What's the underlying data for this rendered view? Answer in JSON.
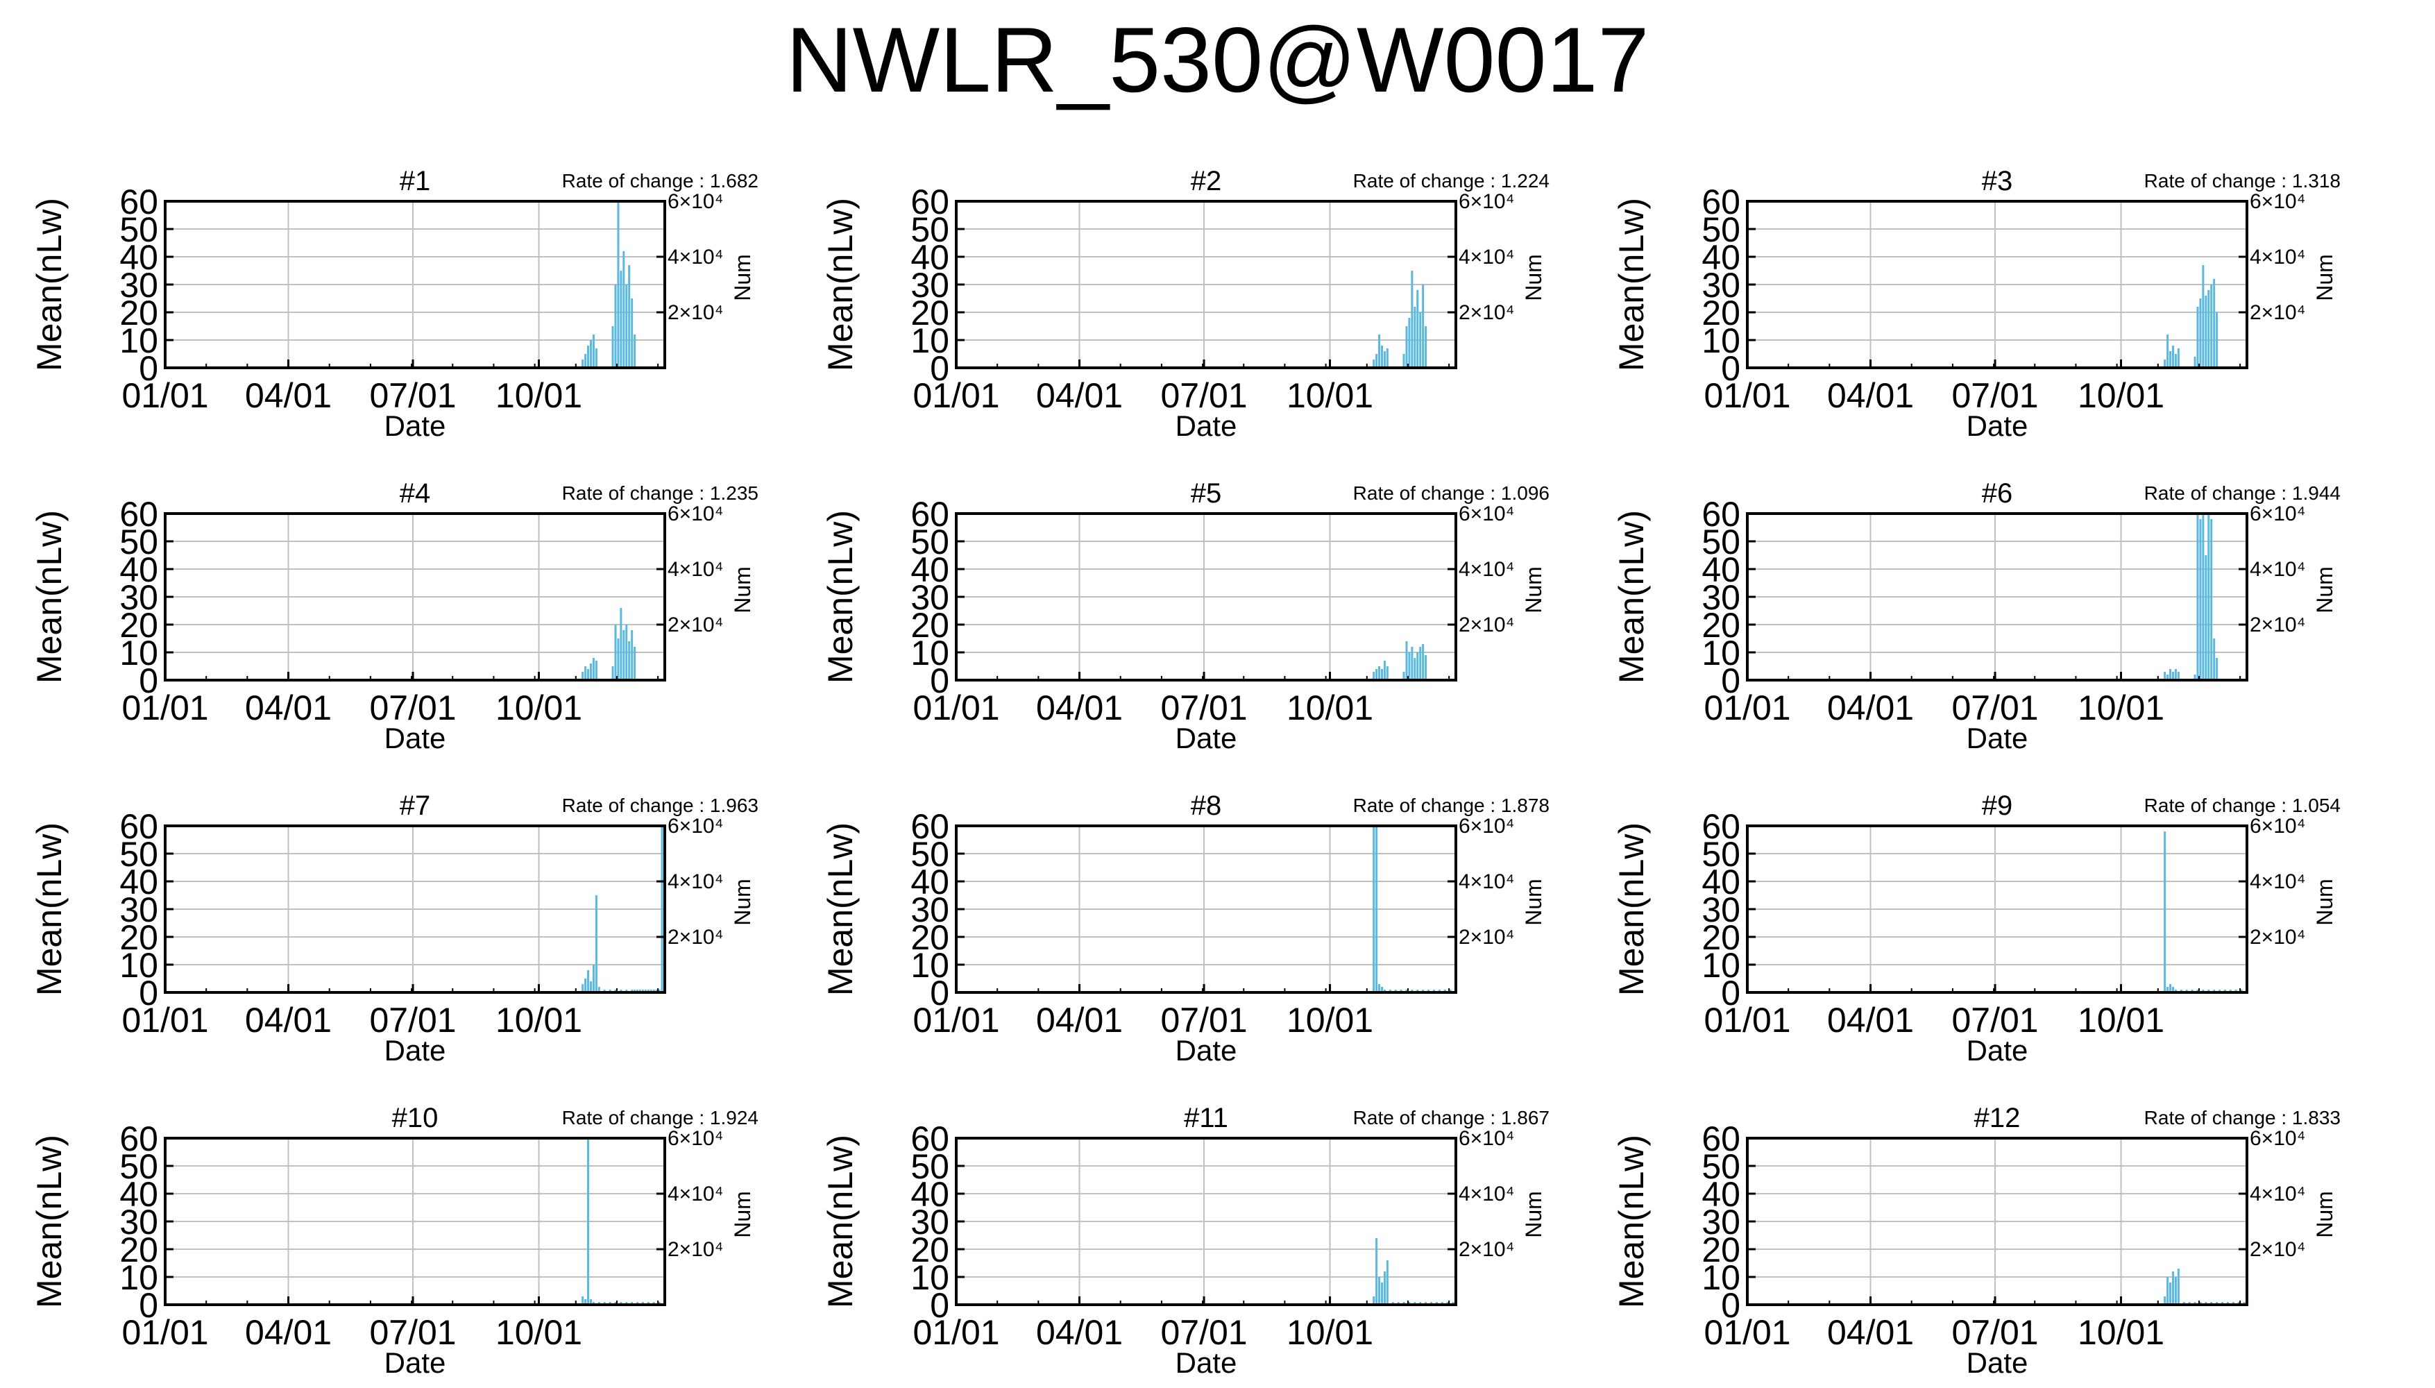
{
  "figure": {
    "title": "NWLR_530@W0017"
  },
  "colors": {
    "bar": "#5bb8de",
    "grid": "#c0c0c0",
    "axis": "#000000"
  },
  "chart_data": [
    {
      "type": "bar",
      "title": "#1",
      "rate_label": "Rate of change : 1.682",
      "ylabel": "Mean(nLw)",
      "xlabel": "Date",
      "y2label": "Num",
      "ylim": [
        0,
        60
      ],
      "y2lim": [
        0,
        60000
      ],
      "yticks": [
        0,
        10,
        20,
        30,
        40,
        50,
        60
      ],
      "y2ticks": [
        20000,
        40000,
        60000
      ],
      "y2ticklabels": [
        "2×10⁴",
        "4×10⁴",
        "6×10⁴"
      ],
      "xlim": [
        0,
        365
      ],
      "xticks": [
        0,
        90,
        181,
        273
      ],
      "xticklabels": [
        "01/01",
        "04/01",
        "07/01",
        "10/01"
      ],
      "grid": true,
      "series": [
        {
          "x": [
            305,
            307,
            309,
            311,
            313,
            315,
            327,
            329,
            331,
            333,
            335,
            337,
            339,
            341,
            343
          ],
          "values": [
            3,
            5,
            8,
            10,
            12,
            7,
            15,
            30,
            60,
            35,
            42,
            30,
            37,
            25,
            12
          ]
        }
      ]
    },
    {
      "type": "bar",
      "title": "#2",
      "rate_label": "Rate of change : 1.224",
      "ylabel": "Mean(nLw)",
      "xlabel": "Date",
      "y2label": "Num",
      "ylim": [
        0,
        60
      ],
      "y2lim": [
        0,
        60000
      ],
      "yticks": [
        0,
        10,
        20,
        30,
        40,
        50,
        60
      ],
      "y2ticks": [
        20000,
        40000,
        60000
      ],
      "y2ticklabels": [
        "2×10⁴",
        "4×10⁴",
        "6×10⁴"
      ],
      "xlim": [
        0,
        365
      ],
      "xticks": [
        0,
        90,
        181,
        273
      ],
      "xticklabels": [
        "01/01",
        "04/01",
        "07/01",
        "10/01"
      ],
      "grid": true,
      "series": [
        {
          "x": [
            305,
            307,
            309,
            311,
            313,
            315,
            327,
            329,
            331,
            333,
            335,
            337,
            339,
            341,
            343
          ],
          "values": [
            3,
            5,
            12,
            8,
            6,
            7,
            5,
            15,
            18,
            35,
            22,
            28,
            20,
            30,
            15
          ]
        }
      ]
    },
    {
      "type": "bar",
      "title": "#3",
      "rate_label": "Rate of change : 1.318",
      "ylabel": "Mean(nLw)",
      "xlabel": "Date",
      "y2label": "Num",
      "ylim": [
        0,
        60
      ],
      "y2lim": [
        0,
        60000
      ],
      "yticks": [
        0,
        10,
        20,
        30,
        40,
        50,
        60
      ],
      "y2ticks": [
        20000,
        40000,
        60000
      ],
      "y2ticklabels": [
        "2×10⁴",
        "4×10⁴",
        "6×10⁴"
      ],
      "xlim": [
        0,
        365
      ],
      "xticks": [
        0,
        90,
        181,
        273
      ],
      "xticklabels": [
        "01/01",
        "04/01",
        "07/01",
        "10/01"
      ],
      "grid": true,
      "series": [
        {
          "x": [
            305,
            307,
            309,
            311,
            313,
            315,
            327,
            329,
            331,
            333,
            335,
            337,
            339,
            341,
            343
          ],
          "values": [
            3,
            12,
            6,
            8,
            5,
            7,
            4,
            22,
            25,
            37,
            26,
            28,
            30,
            32,
            20
          ]
        }
      ]
    },
    {
      "type": "bar",
      "title": "#4",
      "rate_label": "Rate of change : 1.235",
      "ylabel": "Mean(nLw)",
      "xlabel": "Date",
      "y2label": "Num",
      "ylim": [
        0,
        60
      ],
      "y2lim": [
        0,
        60000
      ],
      "yticks": [
        0,
        10,
        20,
        30,
        40,
        50,
        60
      ],
      "y2ticks": [
        20000,
        40000,
        60000
      ],
      "y2ticklabels": [
        "2×10⁴",
        "4×10⁴",
        "6×10⁴"
      ],
      "xlim": [
        0,
        365
      ],
      "xticks": [
        0,
        90,
        181,
        273
      ],
      "xticklabels": [
        "01/01",
        "04/01",
        "07/01",
        "10/01"
      ],
      "grid": true,
      "series": [
        {
          "x": [
            305,
            307,
            309,
            311,
            313,
            315,
            327,
            329,
            331,
            333,
            335,
            337,
            339,
            341,
            343
          ],
          "values": [
            3,
            5,
            4,
            6,
            8,
            7,
            5,
            20,
            15,
            26,
            18,
            20,
            14,
            18,
            12
          ]
        }
      ]
    },
    {
      "type": "bar",
      "title": "#5",
      "rate_label": "Rate of change : 1.096",
      "ylabel": "Mean(nLw)",
      "xlabel": "Date",
      "y2label": "Num",
      "ylim": [
        0,
        60
      ],
      "y2lim": [
        0,
        60000
      ],
      "yticks": [
        0,
        10,
        20,
        30,
        40,
        50,
        60
      ],
      "y2ticks": [
        20000,
        40000,
        60000
      ],
      "y2ticklabels": [
        "2×10⁴",
        "4×10⁴",
        "6×10⁴"
      ],
      "xlim": [
        0,
        365
      ],
      "xticks": [
        0,
        90,
        181,
        273
      ],
      "xticklabels": [
        "01/01",
        "04/01",
        "07/01",
        "10/01"
      ],
      "grid": true,
      "series": [
        {
          "x": [
            305,
            307,
            309,
            311,
            313,
            315,
            327,
            329,
            331,
            333,
            335,
            337,
            339,
            341,
            343
          ],
          "values": [
            3,
            4,
            5,
            4,
            7,
            5,
            3,
            14,
            10,
            12,
            8,
            10,
            12,
            13,
            9
          ]
        }
      ]
    },
    {
      "type": "bar",
      "title": "#6",
      "rate_label": "Rate of change : 1.944",
      "ylabel": "Mean(nLw)",
      "xlabel": "Date",
      "y2label": "Num",
      "ylim": [
        0,
        60
      ],
      "y2lim": [
        0,
        60000
      ],
      "yticks": [
        0,
        10,
        20,
        30,
        40,
        50,
        60
      ],
      "y2ticks": [
        20000,
        40000,
        60000
      ],
      "y2ticklabels": [
        "2×10⁴",
        "4×10⁴",
        "6×10⁴"
      ],
      "xlim": [
        0,
        365
      ],
      "xticks": [
        0,
        90,
        181,
        273
      ],
      "xticklabels": [
        "01/01",
        "04/01",
        "07/01",
        "10/01"
      ],
      "grid": true,
      "series": [
        {
          "x": [
            305,
            307,
            309,
            311,
            313,
            315,
            327,
            329,
            331,
            333,
            335,
            337,
            339,
            341,
            343
          ],
          "values": [
            3,
            2,
            4,
            3,
            4,
            3,
            2,
            60,
            58,
            60,
            45,
            60,
            58,
            15,
            8
          ]
        }
      ]
    },
    {
      "type": "bar",
      "title": "#7",
      "rate_label": "Rate of change : 1.963",
      "ylabel": "Mean(nLw)",
      "xlabel": "Date",
      "y2label": "Num",
      "ylim": [
        0,
        60
      ],
      "y2lim": [
        0,
        60000
      ],
      "yticks": [
        0,
        10,
        20,
        30,
        40,
        50,
        60
      ],
      "y2ticks": [
        20000,
        40000,
        60000
      ],
      "y2ticklabels": [
        "2×10⁴",
        "4×10⁴",
        "6×10⁴"
      ],
      "xlim": [
        0,
        365
      ],
      "xticks": [
        0,
        90,
        181,
        273
      ],
      "xticklabels": [
        "01/01",
        "04/01",
        "07/01",
        "10/01"
      ],
      "grid": true,
      "series": [
        {
          "x": [
            305,
            307,
            309,
            311,
            313,
            315,
            317,
            321,
            325,
            329,
            333,
            337,
            341,
            343,
            345,
            347,
            349,
            351,
            353,
            355,
            357,
            359,
            361,
            363
          ],
          "values": [
            3,
            5,
            8,
            4,
            10,
            35,
            2,
            1,
            1,
            1,
            1,
            1,
            1,
            1,
            1,
            1,
            1,
            1,
            1,
            1,
            1,
            1,
            1,
            60
          ]
        }
      ]
    },
    {
      "type": "bar",
      "title": "#8",
      "rate_label": "Rate of change : 1.878",
      "ylabel": "Mean(nLw)",
      "xlabel": "Date",
      "y2label": "Num",
      "ylim": [
        0,
        60
      ],
      "y2lim": [
        0,
        60000
      ],
      "yticks": [
        0,
        10,
        20,
        30,
        40,
        50,
        60
      ],
      "y2ticks": [
        20000,
        40000,
        60000
      ],
      "y2ticklabels": [
        "2×10⁴",
        "4×10⁴",
        "6×10⁴"
      ],
      "xlim": [
        0,
        365
      ],
      "xticks": [
        0,
        90,
        181,
        273
      ],
      "xticklabels": [
        "01/01",
        "04/01",
        "07/01",
        "10/01"
      ],
      "grid": true,
      "series": [
        {
          "x": [
            305,
            307,
            309,
            311,
            313,
            317,
            321,
            325,
            329,
            333,
            337,
            341,
            345,
            349,
            353,
            357,
            361
          ],
          "values": [
            60,
            60,
            3,
            2,
            1,
            1,
            1,
            1,
            1,
            1,
            1,
            1,
            1,
            1,
            1,
            1,
            1
          ]
        }
      ]
    },
    {
      "type": "bar",
      "title": "#9",
      "rate_label": "Rate of change : 1.054",
      "ylabel": "Mean(nLw)",
      "xlabel": "Date",
      "y2label": "Num",
      "ylim": [
        0,
        60
      ],
      "y2lim": [
        0,
        60000
      ],
      "yticks": [
        0,
        10,
        20,
        30,
        40,
        50,
        60
      ],
      "y2ticks": [
        20000,
        40000,
        60000
      ],
      "y2ticklabels": [
        "2×10⁴",
        "4×10⁴",
        "6×10⁴"
      ],
      "xlim": [
        0,
        365
      ],
      "xticks": [
        0,
        90,
        181,
        273
      ],
      "xticklabels": [
        "01/01",
        "04/01",
        "07/01",
        "10/01"
      ],
      "grid": true,
      "series": [
        {
          "x": [
            305,
            307,
            309,
            311,
            313,
            317,
            321,
            325,
            329,
            333,
            337,
            341,
            345,
            349,
            353,
            357,
            361
          ],
          "values": [
            58,
            2,
            3,
            2,
            1,
            1,
            1,
            1,
            1,
            1,
            1,
            1,
            1,
            1,
            1,
            1,
            1
          ]
        }
      ]
    },
    {
      "type": "bar",
      "title": "#10",
      "rate_label": "Rate of change : 1.924",
      "ylabel": "Mean(nLw)",
      "xlabel": "Date",
      "y2label": "Num",
      "ylim": [
        0,
        60
      ],
      "y2lim": [
        0,
        60000
      ],
      "yticks": [
        0,
        10,
        20,
        30,
        40,
        50,
        60
      ],
      "y2ticks": [
        20000,
        40000,
        60000
      ],
      "y2ticklabels": [
        "2×10⁴",
        "4×10⁴",
        "6×10⁴"
      ],
      "xlim": [
        0,
        365
      ],
      "xticks": [
        0,
        90,
        181,
        273
      ],
      "xticklabels": [
        "01/01",
        "04/01",
        "07/01",
        "10/01"
      ],
      "grid": true,
      "series": [
        {
          "x": [
            305,
            307,
            309,
            311,
            313,
            317,
            321,
            325,
            329,
            333,
            337,
            341,
            345,
            349,
            353,
            357,
            361
          ],
          "values": [
            3,
            2,
            60,
            2,
            1,
            1,
            1,
            1,
            1,
            1,
            1,
            1,
            1,
            1,
            1,
            1,
            1
          ]
        }
      ]
    },
    {
      "type": "bar",
      "title": "#11",
      "rate_label": "Rate of change : 1.867",
      "ylabel": "Mean(nLw)",
      "xlabel": "Date",
      "y2label": "Num",
      "ylim": [
        0,
        60
      ],
      "y2lim": [
        0,
        60000
      ],
      "yticks": [
        0,
        10,
        20,
        30,
        40,
        50,
        60
      ],
      "y2ticks": [
        20000,
        40000,
        60000
      ],
      "y2ticklabels": [
        "2×10⁴",
        "4×10⁴",
        "6×10⁴"
      ],
      "xlim": [
        0,
        365
      ],
      "xticks": [
        0,
        90,
        181,
        273
      ],
      "xticklabels": [
        "01/01",
        "04/01",
        "07/01",
        "10/01"
      ],
      "grid": true,
      "series": [
        {
          "x": [
            305,
            307,
            309,
            311,
            313,
            315,
            319,
            323,
            327,
            331,
            335,
            339,
            343,
            347,
            351,
            355,
            359,
            363
          ],
          "values": [
            3,
            24,
            10,
            8,
            12,
            16,
            1,
            1,
            1,
            1,
            1,
            1,
            1,
            1,
            1,
            1,
            1,
            1
          ]
        }
      ]
    },
    {
      "type": "bar",
      "title": "#12",
      "rate_label": "Rate of change : 1.833",
      "ylabel": "Mean(nLw)",
      "xlabel": "Date",
      "y2label": "Num",
      "ylim": [
        0,
        60
      ],
      "y2lim": [
        0,
        60000
      ],
      "yticks": [
        0,
        10,
        20,
        30,
        40,
        50,
        60
      ],
      "y2ticks": [
        20000,
        40000,
        60000
      ],
      "y2ticklabels": [
        "2×10⁴",
        "4×10⁴",
        "6×10⁴"
      ],
      "xlim": [
        0,
        365
      ],
      "xticks": [
        0,
        90,
        181,
        273
      ],
      "xticklabels": [
        "01/01",
        "04/01",
        "07/01",
        "10/01"
      ],
      "grid": true,
      "series": [
        {
          "x": [
            305,
            307,
            309,
            311,
            313,
            315,
            319,
            323,
            327,
            331,
            335,
            339,
            343,
            347,
            351,
            355,
            359,
            363
          ],
          "values": [
            3,
            10,
            8,
            12,
            10,
            13,
            1,
            1,
            1,
            1,
            1,
            1,
            1,
            1,
            1,
            1,
            1,
            1
          ]
        }
      ]
    }
  ]
}
